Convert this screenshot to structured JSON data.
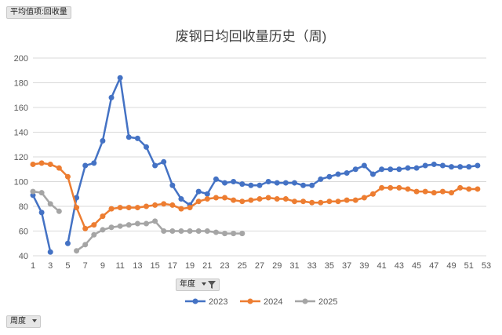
{
  "value_field_label": "平均值项:回收量",
  "period_field_label": "周度",
  "year_field_label": "年度",
  "chart_data": {
    "type": "line",
    "title": "废钢日均回收量历史（周)",
    "xlabel": "",
    "ylabel": "",
    "ylim": [
      40,
      200
    ],
    "yticks": [
      40,
      60,
      80,
      100,
      120,
      140,
      160,
      180,
      200
    ],
    "xlim": [
      1,
      53
    ],
    "xticks": [
      1,
      3,
      5,
      7,
      9,
      11,
      13,
      15,
      17,
      19,
      21,
      23,
      25,
      27,
      29,
      31,
      33,
      35,
      37,
      39,
      41,
      43,
      45,
      47,
      49,
      51,
      53
    ],
    "grid": true,
    "legend": "bottom",
    "series": [
      {
        "name": "2023",
        "color": "#4472C4",
        "x": [
          1,
          2,
          3,
          5,
          6,
          7,
          8,
          9,
          10,
          11,
          12,
          13,
          14,
          15,
          16,
          17,
          18,
          19,
          20,
          21,
          22,
          23,
          24,
          25,
          26,
          27,
          28,
          29,
          30,
          31,
          32,
          33,
          34,
          35,
          36,
          37,
          38,
          39,
          40,
          41,
          42,
          43,
          44,
          45,
          46,
          47,
          48,
          49,
          50,
          51,
          52
        ],
        "values": [
          89,
          75,
          43,
          50,
          87,
          113,
          115,
          133,
          168,
          184,
          136,
          135,
          128,
          113,
          116,
          97,
          86,
          81,
          92,
          90,
          102,
          99,
          100,
          98,
          97,
          97,
          100,
          99,
          99,
          99,
          97,
          97,
          102,
          104,
          106,
          107,
          110,
          113,
          106,
          110,
          110,
          110,
          111,
          111,
          113,
          114,
          113,
          112,
          112,
          112,
          113
        ]
      },
      {
        "name": "2024",
        "color": "#ED7D31",
        "x": [
          1,
          2,
          3,
          4,
          5,
          6,
          7,
          8,
          9,
          10,
          11,
          12,
          13,
          14,
          15,
          16,
          17,
          18,
          19,
          20,
          21,
          22,
          23,
          24,
          25,
          26,
          27,
          28,
          29,
          30,
          31,
          32,
          33,
          34,
          35,
          36,
          37,
          38,
          39,
          40,
          41,
          42,
          43,
          44,
          45,
          46,
          47,
          48,
          49,
          50,
          51,
          52
        ],
        "values": [
          114,
          115,
          114,
          111,
          104,
          79,
          62,
          65,
          72,
          78,
          79,
          79,
          79,
          80,
          81,
          82,
          81,
          78,
          79,
          84,
          86,
          87,
          87,
          85,
          84,
          85,
          86,
          87,
          86,
          86,
          84,
          84,
          83,
          83,
          84,
          84,
          85,
          85,
          87,
          90,
          95,
          95,
          95,
          94,
          92,
          92,
          91,
          92,
          91,
          95,
          94,
          94
        ]
      },
      {
        "name": "2025",
        "color": "#A5A5A5",
        "x": [
          1,
          2,
          3,
          4,
          6,
          7,
          8,
          9,
          10,
          11,
          12,
          13,
          14,
          15,
          16,
          17,
          18,
          19,
          20,
          21,
          22,
          23,
          24,
          25
        ],
        "values": [
          92,
          91,
          82,
          76,
          44,
          49,
          57,
          61,
          63,
          64,
          65,
          66,
          66,
          68,
          60,
          60,
          60,
          60,
          60,
          60,
          59,
          58,
          58,
          58
        ]
      }
    ]
  }
}
